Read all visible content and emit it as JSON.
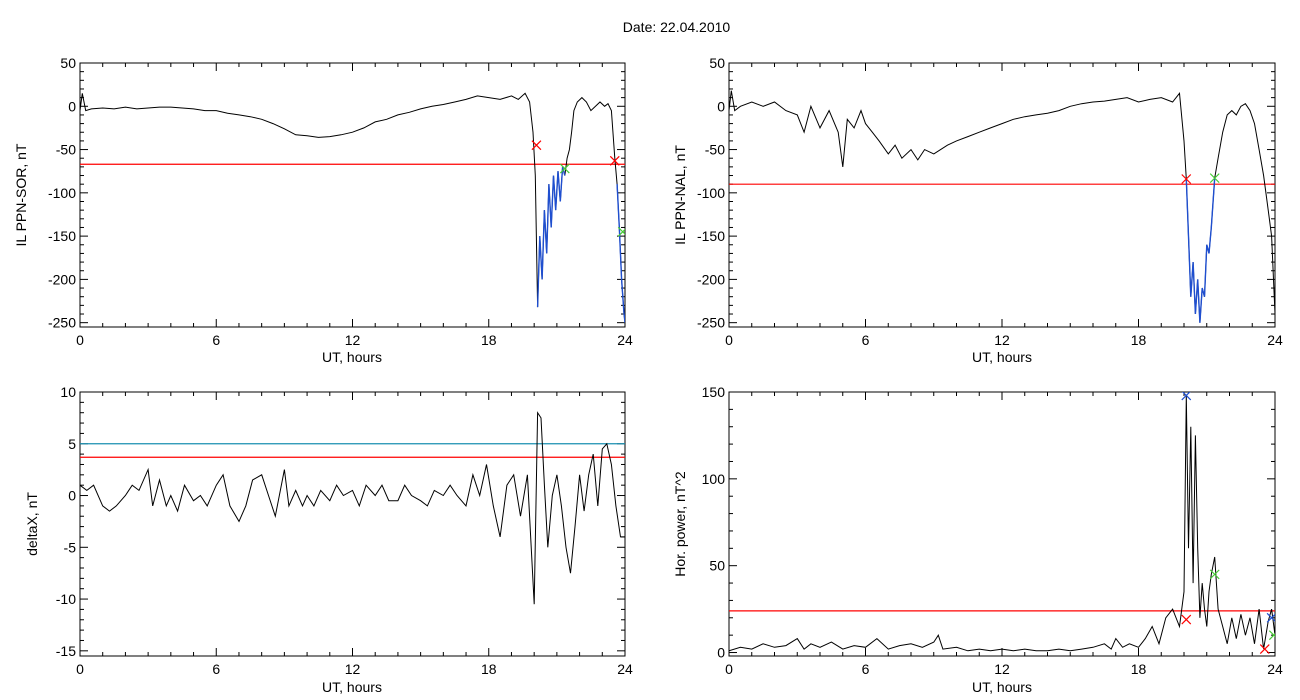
{
  "page_title": "Date:  22.04.2010",
  "colors": {
    "trace": "#000000",
    "threshold_red": "#ff0000",
    "threshold_blue": "#1a8fb0",
    "highlight_blue": "#1f4fd0",
    "marker_red": "#ff0000",
    "marker_green": "#44cc33",
    "marker_blue": "#1f4fd0"
  },
  "chart_data": [
    {
      "id": "ppn-sor",
      "type": "line",
      "title": "",
      "xlabel": "UT, hours",
      "ylabel": "IL PPN-SOR, nT",
      "xlim": [
        0,
        24
      ],
      "ylim": [
        -255,
        50
      ],
      "xticks": [
        0,
        6,
        12,
        18,
        24
      ],
      "yticks": [
        50,
        0,
        -50,
        -100,
        -150,
        -200,
        -250
      ],
      "grid": false,
      "hlines": [
        {
          "y": -67,
          "color": "#ff0000"
        }
      ],
      "highlight_intervals": [
        [
          20.1,
          21.35
        ],
        [
          23.6,
          24
        ]
      ],
      "markers": [
        {
          "x": 20.1,
          "y": -45,
          "color": "#ff0000"
        },
        {
          "x": 21.35,
          "y": -72,
          "color": "#44cc33"
        },
        {
          "x": 23.55,
          "y": -63,
          "color": "#ff0000"
        },
        {
          "x": 23.9,
          "y": -145,
          "color": "#44cc33"
        }
      ],
      "series": [
        {
          "x": [
            0,
            0.1,
            0.25,
            0.5,
            1,
            1.5,
            2,
            2.5,
            3,
            3.5,
            4,
            4.5,
            5,
            5.5,
            6,
            6.5,
            7,
            7.5,
            8,
            8.5,
            9,
            9.5,
            10,
            10.5,
            11,
            11.5,
            12,
            12.5,
            13,
            13.5,
            14,
            14.5,
            15,
            15.5,
            16,
            16.5,
            17,
            17.5,
            18,
            18.5,
            19,
            19.3,
            19.6,
            19.8,
            19.95,
            20.05,
            20.15,
            20.25,
            20.35,
            20.45,
            20.55,
            20.65,
            20.75,
            20.85,
            20.95,
            21.05,
            21.15,
            21.25,
            21.35,
            21.45,
            21.55,
            21.65,
            21.75,
            21.9,
            22.1,
            22.3,
            22.5,
            22.7,
            22.9,
            23.1,
            23.25,
            23.4,
            23.55,
            23.65,
            23.75,
            23.85,
            23.95,
            24
          ],
          "y": [
            -5,
            15,
            -5,
            -3,
            -2,
            -3,
            -1,
            -3,
            -2,
            -1,
            -1,
            -2,
            -3,
            -5,
            -5,
            -8,
            -10,
            -12,
            -15,
            -20,
            -26,
            -33,
            -34,
            -36,
            -35,
            -33,
            -30,
            -25,
            -18,
            -15,
            -10,
            -7,
            -3,
            0,
            2,
            5,
            8,
            12,
            10,
            8,
            12,
            8,
            15,
            5,
            -30,
            -80,
            -232,
            -150,
            -200,
            -120,
            -170,
            -90,
            -140,
            -80,
            -120,
            -75,
            -110,
            -70,
            -80,
            -60,
            -50,
            -30,
            -5,
            5,
            10,
            5,
            -5,
            0,
            5,
            0,
            3,
            -5,
            -60,
            -90,
            -140,
            -200,
            -238,
            -250
          ]
        }
      ]
    },
    {
      "id": "ppn-nal",
      "type": "line",
      "title": "",
      "xlabel": "UT, hours",
      "ylabel": "IL PPN-NAL, nT",
      "xlim": [
        0,
        24
      ],
      "ylim": [
        -255,
        50
      ],
      "xticks": [
        0,
        6,
        12,
        18,
        24
      ],
      "yticks": [
        50,
        0,
        -50,
        -100,
        -150,
        -200,
        -250
      ],
      "grid": false,
      "hlines": [
        {
          "y": -90,
          "color": "#ff0000"
        }
      ],
      "highlight_intervals": [
        [
          20.1,
          21.35
        ]
      ],
      "markers": [
        {
          "x": 20.1,
          "y": -84,
          "color": "#ff0000"
        },
        {
          "x": 21.35,
          "y": -83,
          "color": "#44cc33"
        }
      ],
      "series": [
        {
          "x": [
            0,
            0.1,
            0.25,
            0.5,
            1,
            1.5,
            2,
            2.5,
            3,
            3.3,
            3.6,
            4,
            4.4,
            4.8,
            5,
            5.2,
            5.5,
            5.8,
            6,
            6.3,
            6.6,
            7,
            7.3,
            7.6,
            8,
            8.3,
            8.6,
            9,
            9.3,
            9.6,
            10,
            10.5,
            11,
            11.5,
            12,
            12.5,
            13,
            13.5,
            14,
            14.5,
            15,
            15.5,
            16,
            16.5,
            17,
            17.5,
            18,
            18.5,
            19,
            19.5,
            19.8,
            20.0,
            20.1,
            20.2,
            20.3,
            20.4,
            20.5,
            20.6,
            20.7,
            20.8,
            20.9,
            21.0,
            21.1,
            21.2,
            21.35,
            21.5,
            21.7,
            21.9,
            22.1,
            22.3,
            22.5,
            22.7,
            22.9,
            23.1,
            23.3,
            23.5,
            23.7,
            23.85,
            24
          ],
          "y": [
            -5,
            18,
            -5,
            0,
            5,
            0,
            5,
            -5,
            -10,
            -30,
            0,
            -25,
            -5,
            -30,
            -70,
            -15,
            -25,
            -5,
            -20,
            -30,
            -40,
            -55,
            -45,
            -60,
            -50,
            -62,
            -50,
            -55,
            -50,
            -45,
            -40,
            -35,
            -30,
            -25,
            -20,
            -15,
            -12,
            -10,
            -8,
            -5,
            0,
            3,
            5,
            6,
            8,
            10,
            5,
            8,
            10,
            5,
            15,
            -40,
            -84,
            -150,
            -220,
            -180,
            -240,
            -200,
            -250,
            -210,
            -220,
            -160,
            -170,
            -140,
            -83,
            -60,
            -30,
            -10,
            -5,
            -10,
            0,
            3,
            -5,
            -20,
            -50,
            -80,
            -120,
            -150,
            -240
          ]
        }
      ]
    },
    {
      "id": "deltax",
      "type": "line",
      "title": "",
      "xlabel": "UT, hours",
      "ylabel": "deltaX, nT",
      "xlim": [
        0,
        24
      ],
      "ylim": [
        -15.5,
        10
      ],
      "xticks": [
        0,
        6,
        12,
        18,
        24
      ],
      "yticks": [
        10,
        5,
        0,
        -5,
        -10,
        -15
      ],
      "grid": false,
      "hlines": [
        {
          "y": 5,
          "color": "#1a8fb0"
        },
        {
          "y": 3.7,
          "color": "#ff0000"
        }
      ],
      "highlight_intervals": [],
      "markers": [],
      "series": [
        {
          "x": [
            0,
            0.3,
            0.6,
            1,
            1.3,
            1.6,
            2,
            2.3,
            2.6,
            3,
            3.2,
            3.5,
            3.8,
            4,
            4.3,
            4.6,
            5,
            5.3,
            5.6,
            6,
            6.3,
            6.6,
            7,
            7.3,
            7.6,
            8,
            8.3,
            8.6,
            9,
            9.2,
            9.5,
            9.8,
            10,
            10.3,
            10.6,
            11,
            11.3,
            11.6,
            12,
            12.3,
            12.6,
            13,
            13.3,
            13.6,
            14,
            14.3,
            14.6,
            15,
            15.3,
            15.6,
            16,
            16.3,
            16.6,
            17,
            17.3,
            17.6,
            17.9,
            18.2,
            18.5,
            18.8,
            19.1,
            19.4,
            19.7,
            20.0,
            20.15,
            20.3,
            20.45,
            20.6,
            20.8,
            21.0,
            21.2,
            21.4,
            21.6,
            21.8,
            22.0,
            22.2,
            22.4,
            22.6,
            22.8,
            23.0,
            23.2,
            23.4,
            23.6,
            23.8,
            24
          ],
          "y": [
            1,
            0.5,
            1,
            -1,
            -1.5,
            -1,
            0,
            1,
            0.5,
            2.5,
            -1,
            1.5,
            -1,
            0,
            -1.5,
            1,
            -0.5,
            0,
            -1,
            1,
            2,
            -1,
            -2.5,
            -1,
            1.5,
            2,
            0,
            -2,
            2.5,
            -1,
            0.5,
            -1,
            0,
            -1,
            0.5,
            -0.5,
            1,
            0,
            0.5,
            -1,
            1,
            0,
            1,
            -0.5,
            -0.5,
            1,
            0,
            -0.5,
            -1,
            0.5,
            0,
            1,
            0,
            -1,
            2,
            0,
            3,
            -1,
            -4,
            1,
            2,
            -2,
            2,
            -10.5,
            8,
            7.5,
            1,
            -5,
            0,
            2,
            -1,
            -5,
            -7.5,
            -3,
            2,
            -1.5,
            2,
            4,
            -1,
            4.5,
            5,
            3,
            -1,
            -4,
            -4
          ]
        }
      ]
    },
    {
      "id": "hor-power",
      "type": "line",
      "title": "",
      "xlabel": "UT, hours",
      "ylabel": "Hor. power, nT^2",
      "xlim": [
        0,
        24
      ],
      "ylim": [
        -2,
        150
      ],
      "xticks": [
        0,
        6,
        12,
        18,
        24
      ],
      "yticks": [
        150,
        100,
        50,
        0
      ],
      "grid": false,
      "hlines": [
        {
          "y": 24,
          "color": "#ff0000"
        }
      ],
      "highlight_intervals": [],
      "markers": [
        {
          "x": 20.1,
          "y": 148,
          "color": "#1f4fd0"
        },
        {
          "x": 21.35,
          "y": 45,
          "color": "#44cc33"
        },
        {
          "x": 20.1,
          "y": 19,
          "color": "#ff0000"
        },
        {
          "x": 23.85,
          "y": 20,
          "color": "#1f4fd0"
        },
        {
          "x": 23.55,
          "y": 2,
          "color": "#ff0000"
        },
        {
          "x": 23.95,
          "y": 10,
          "color": "#44cc33"
        }
      ],
      "series": [
        {
          "x": [
            0,
            0.5,
            1,
            1.5,
            2,
            2.5,
            3,
            3.3,
            3.6,
            4,
            4.5,
            5,
            5.5,
            6,
            6.5,
            7,
            7.5,
            8,
            8.5,
            9,
            9.2,
            9.4,
            10,
            10.5,
            11,
            11.5,
            12,
            12.5,
            13,
            13.5,
            14,
            14.5,
            15,
            15.5,
            16,
            16.5,
            16.8,
            17,
            17.3,
            17.6,
            18,
            18.3,
            18.6,
            18.9,
            19.2,
            19.5,
            19.8,
            20.0,
            20.1,
            20.2,
            20.3,
            20.4,
            20.5,
            20.6,
            20.7,
            20.8,
            20.9,
            21.0,
            21.1,
            21.2,
            21.35,
            21.5,
            21.7,
            21.9,
            22.1,
            22.3,
            22.5,
            22.7,
            22.9,
            23.1,
            23.3,
            23.5,
            23.7,
            23.85,
            24
          ],
          "y": [
            1,
            3,
            2,
            5,
            3,
            4,
            8,
            2,
            5,
            3,
            6,
            2,
            4,
            3,
            8,
            2,
            4,
            5,
            3,
            6,
            10,
            2,
            3,
            1,
            2,
            1,
            2,
            1,
            2,
            1,
            1,
            2,
            1,
            2,
            3,
            5,
            2,
            8,
            3,
            5,
            3,
            8,
            15,
            5,
            20,
            25,
            15,
            35,
            148,
            60,
            130,
            40,
            125,
            60,
            20,
            40,
            25,
            15,
            35,
            45,
            55,
            25,
            15,
            5,
            20,
            8,
            22,
            10,
            20,
            5,
            25,
            2,
            18,
            25,
            10
          ]
        }
      ]
    }
  ]
}
